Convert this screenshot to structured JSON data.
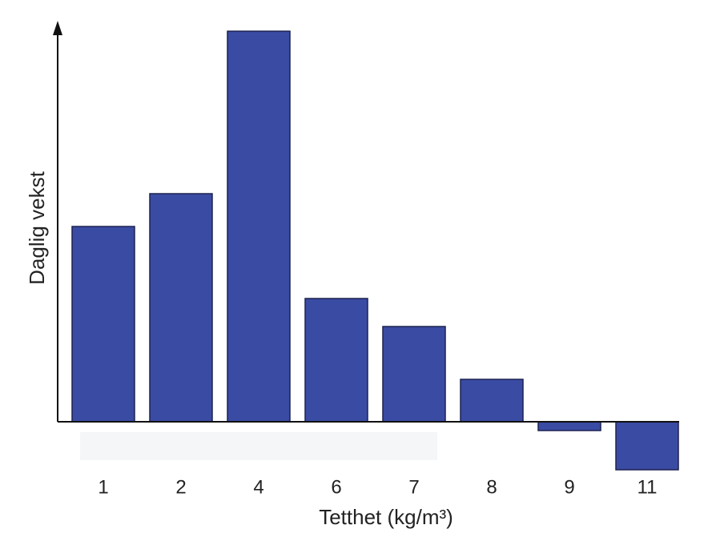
{
  "chart_data": {
    "type": "bar",
    "x_label": "Tetthet (kg/m³)",
    "y_label": "Daglig vekst",
    "categories": [
      "1",
      "2",
      "4",
      "6",
      "7",
      "8",
      "9",
      "11"
    ],
    "values": [
      244,
      285,
      488,
      154,
      119,
      53,
      -11,
      -60
    ],
    "color": "#3a4ba3",
    "ylim": [
      -60,
      499
    ]
  }
}
